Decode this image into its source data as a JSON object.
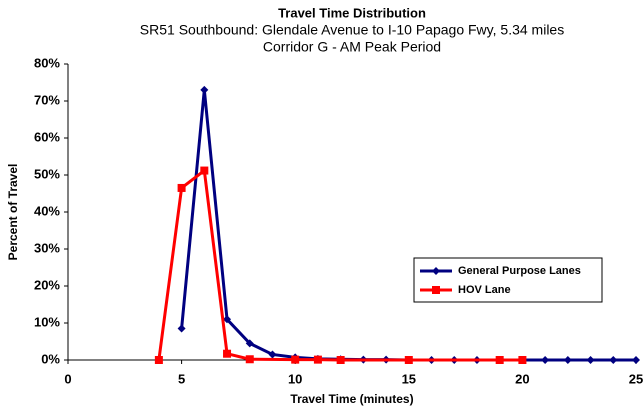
{
  "chart_data": {
    "type": "line",
    "title": "Travel Time Distribution",
    "subtitle": [
      "SR51 Southbound:  Glendale Avenue to I-10 Papago Fwy, 5.34 miles",
      "Corridor G  -  AM Peak Period"
    ],
    "x_label": "Travel Time (minutes)",
    "y_label": "Percent of Travel",
    "xlim": [
      0,
      25
    ],
    "xticks": [
      0,
      5,
      10,
      15,
      20,
      25
    ],
    "ylim": [
      0,
      80
    ],
    "yticks": [
      {
        "value": 0,
        "label": "0%"
      },
      {
        "value": 10,
        "label": "10%"
      },
      {
        "value": 20,
        "label": "20%"
      },
      {
        "value": 30,
        "label": "30%"
      },
      {
        "value": 40,
        "label": "40%"
      },
      {
        "value": 50,
        "label": "50%"
      },
      {
        "value": 60,
        "label": "60%"
      },
      {
        "value": 70,
        "label": "70%"
      },
      {
        "value": 80,
        "label": "80%"
      }
    ],
    "legend": "right",
    "series": [
      {
        "name": "General Purpose Lanes",
        "color": "#000080",
        "marker": "diamond",
        "x": [
          5,
          6,
          7,
          8,
          9,
          10,
          11,
          12,
          13,
          14,
          15,
          16,
          17,
          18,
          19,
          20,
          21,
          22,
          23,
          24,
          25
        ],
        "values": [
          8.5,
          73,
          11,
          4.5,
          1.5,
          0.7,
          0.3,
          0.2,
          0.1,
          0.1,
          0,
          0,
          0,
          0,
          0,
          0,
          0,
          0,
          0,
          0,
          0
        ]
      },
      {
        "name": "HOV Lane",
        "color": "#ff0000",
        "marker": "square",
        "x": [
          4,
          5,
          6,
          7,
          8,
          10,
          11,
          12,
          15,
          19,
          20
        ],
        "values": [
          0,
          46.5,
          51.2,
          1.7,
          0.2,
          0.1,
          0.1,
          0,
          0,
          0,
          0
        ]
      }
    ]
  }
}
